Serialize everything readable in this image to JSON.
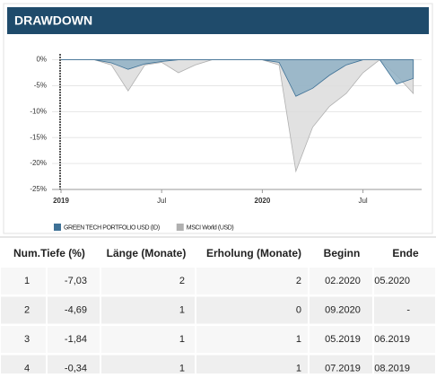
{
  "chart_data": {
    "type": "area",
    "title": "DRAWDOWN",
    "categories": [
      "2019",
      null,
      null,
      null,
      null,
      null,
      "Jul",
      null,
      null,
      null,
      null,
      null,
      "2020",
      null,
      null,
      null,
      null,
      null,
      "Jul",
      null,
      null,
      null
    ],
    "series": [
      {
        "name": "GREEN TECH PORTFOLIO USD (ID)",
        "color": "#3e7196",
        "fill": "#8fb0c4",
        "values": [
          0,
          0,
          0,
          -0.6,
          -1.84,
          -0.8,
          -0.34,
          0,
          0,
          0,
          0,
          0,
          0,
          -0.5,
          -7.03,
          -5.5,
          -3,
          -1,
          0,
          0,
          -4.69,
          -3.6
        ]
      },
      {
        "name": "MSCI World (USD)",
        "color": "#b0b0b0",
        "fill": "#dcdcdc",
        "values": [
          0,
          0,
          0,
          -1,
          -6,
          -1,
          -0.5,
          -2.5,
          -1,
          0,
          0,
          0,
          0,
          -1,
          -21.5,
          -13,
          -9,
          -6.5,
          -2.5,
          0,
          -3,
          -6.5
        ]
      }
    ],
    "ylim": [
      -25,
      2
    ],
    "yticks": [
      {
        "value": 0,
        "label": "0%"
      },
      {
        "value": -5,
        "label": "-5%"
      },
      {
        "value": -10,
        "label": "-10%"
      },
      {
        "value": -15,
        "label": "-15%"
      },
      {
        "value": -20,
        "label": "-20%"
      },
      {
        "value": -25,
        "label": "-25%"
      }
    ],
    "grid": true
  },
  "table": {
    "header": [
      "Num.",
      "Tiefe (%)",
      "Länge (Monate)",
      "Erholung (Monate)",
      "Beginn",
      "Ende"
    ],
    "rows": [
      [
        "1",
        "-7,03",
        "2",
        "2",
        "02.2020",
        "05.2020"
      ],
      [
        "2",
        "-4,69",
        "1",
        "0",
        "09.2020",
        "-"
      ],
      [
        "3",
        "-1,84",
        "1",
        "1",
        "05.2019",
        "06.2019"
      ],
      [
        "4",
        "-0,34",
        "1",
        "1",
        "07.2019",
        "08.2019"
      ]
    ]
  }
}
